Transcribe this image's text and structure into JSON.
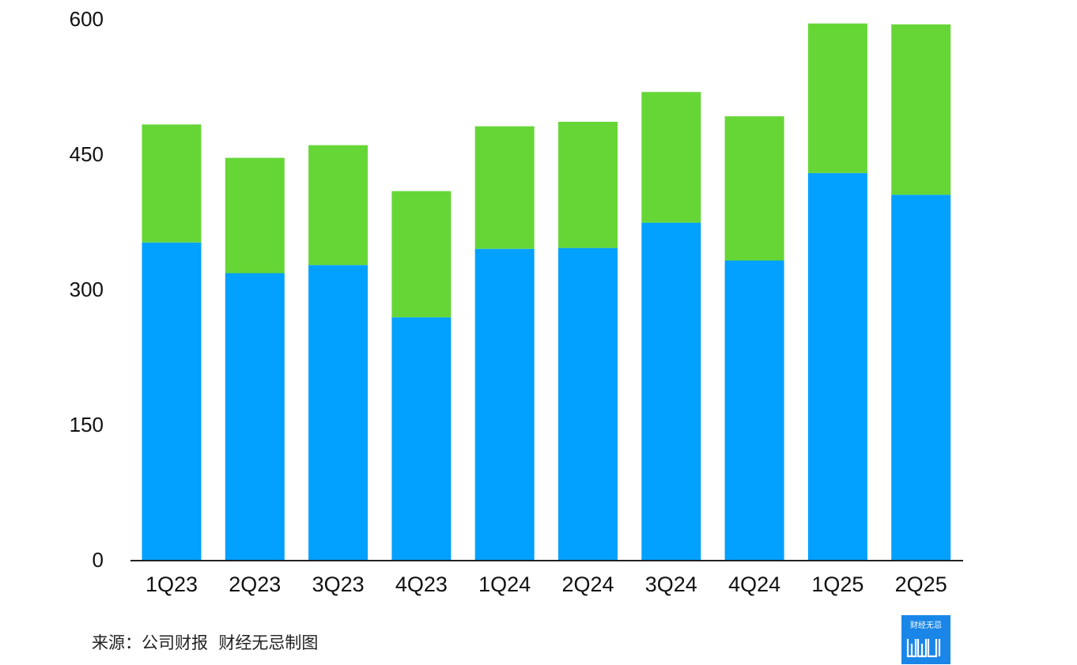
{
  "chart_data": {
    "type": "bar",
    "stacked": true,
    "categories": [
      "1Q23",
      "2Q23",
      "3Q23",
      "4Q23",
      "1Q24",
      "2Q24",
      "3Q24",
      "4Q24",
      "1Q25",
      "2Q25"
    ],
    "series": [
      {
        "values": [
          352,
          318,
          327,
          269,
          345,
          346,
          374,
          332,
          429,
          405
        ],
        "color": "#02a0ff"
      },
      {
        "values": [
          131,
          128,
          133,
          140,
          136,
          140,
          145,
          160,
          166,
          189
        ],
        "color": "#66d637"
      }
    ],
    "yticks": [
      0,
      150,
      300,
      450,
      600
    ],
    "ylim": [
      0,
      600
    ],
    "grid": false,
    "title": "",
    "xlabel": "",
    "ylabel": ""
  },
  "source": "来源：公司财报  财经无忌制图",
  "logo": {
    "top_text": "财经无忌",
    "icon": "wuji-logo-icon",
    "color": "#1a86e8"
  }
}
